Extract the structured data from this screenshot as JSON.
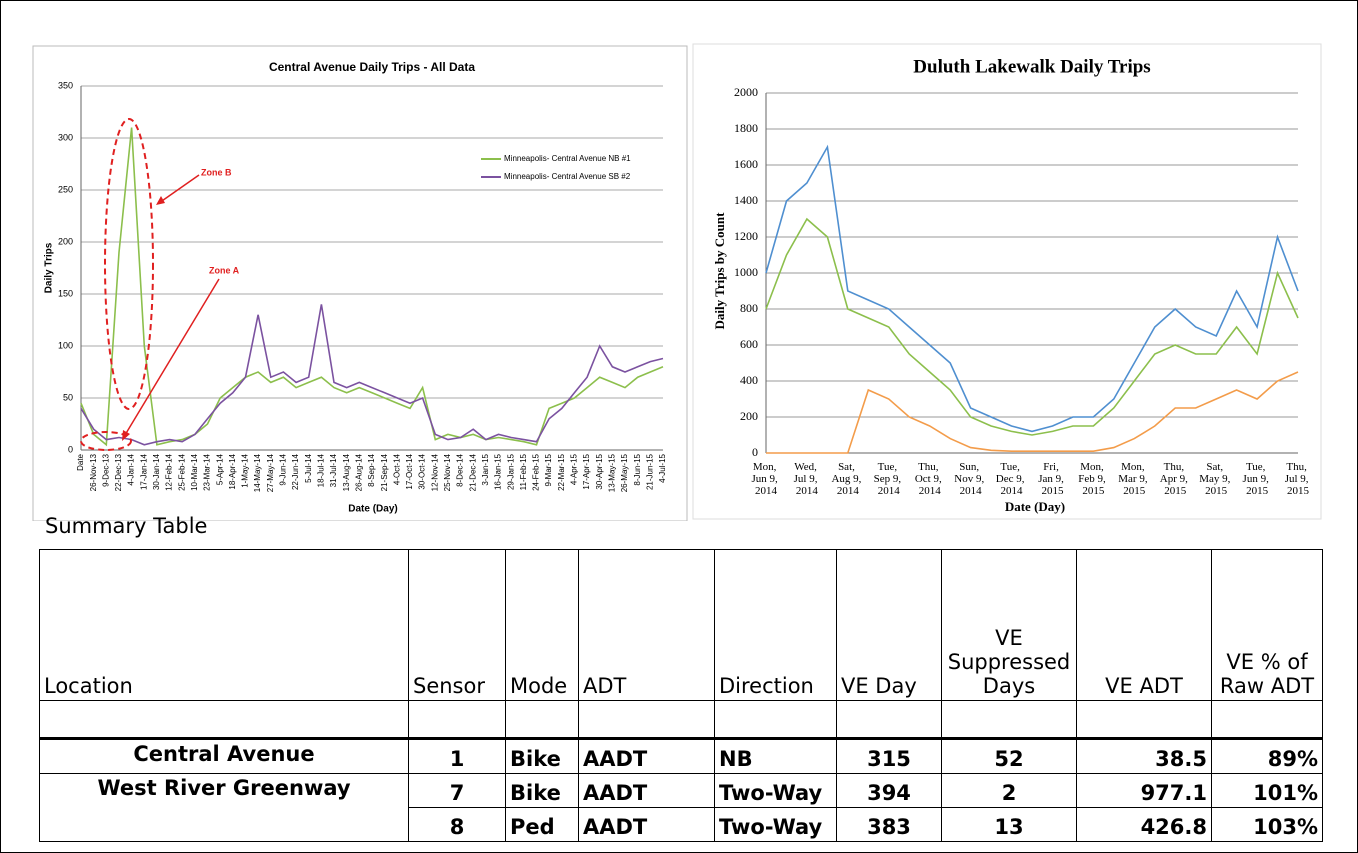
{
  "chart_data": [
    {
      "type": "line",
      "title": "Central Avenue Daily Trips - All Data",
      "x_label": "Date (Day)",
      "y_label": "Daily Trips",
      "categories": [
        "Date",
        "26-Nov-13",
        "9-Dec-13",
        "22-Dec-13",
        "4-Jan-14",
        "17-Jan-14",
        "30-Jan-14",
        "12-Feb-14",
        "25-Feb-14",
        "10-Mar-14",
        "23-Mar-14",
        "5-Apr-14",
        "18-Apr-14",
        "1-May-14",
        "14-May-14",
        "27-May-14",
        "9-Jun-14",
        "22-Jun-14",
        "5-Jul-14",
        "18-Jul-14",
        "31-Jul-14",
        "13-Aug-14",
        "26-Aug-14",
        "8-Sep-14",
        "21-Sep-14",
        "4-Oct-14",
        "17-Oct-14",
        "30-Oct-14",
        "12-Nov-14",
        "25-Nov-14",
        "8-Dec-14",
        "21-Dec-14",
        "3-Jan-15",
        "16-Jan-15",
        "29-Jan-15",
        "11-Feb-15",
        "24-Feb-15",
        "9-Mar-15",
        "22-Mar-15",
        "4-Apr-15",
        "17-Apr-15",
        "30-Apr-15",
        "13-May-15",
        "26-May-15",
        "8-Jun-15",
        "21-Jun-15",
        "4-Jul-15"
      ],
      "series": [
        {
          "name": "Minneapolis- Central Avenue NB #1",
          "color": "#8cbf4c",
          "values": [
            45,
            15,
            5,
            190,
            310,
            100,
            5,
            8,
            10,
            15,
            25,
            50,
            60,
            70,
            75,
            65,
            70,
            60,
            65,
            70,
            60,
            55,
            60,
            55,
            50,
            45,
            40,
            60,
            10,
            15,
            12,
            15,
            10,
            12,
            10,
            8,
            5,
            40,
            45,
            50,
            60,
            70,
            65,
            60,
            70,
            75,
            80
          ]
        },
        {
          "name": "Minneapolis- Central Avenue SB #2",
          "color": "#7b52a0",
          "values": [
            40,
            20,
            10,
            12,
            10,
            5,
            8,
            10,
            8,
            15,
            30,
            45,
            55,
            70,
            130,
            70,
            75,
            65,
            70,
            140,
            65,
            60,
            65,
            60,
            55,
            50,
            45,
            50,
            15,
            10,
            12,
            20,
            10,
            15,
            12,
            10,
            8,
            30,
            40,
            55,
            70,
            100,
            80,
            75,
            80,
            85,
            88
          ]
        }
      ],
      "ylim": [
        0,
        350
      ],
      "yticks": [
        0,
        50,
        100,
        150,
        200,
        250,
        300,
        350
      ],
      "grid": true,
      "legend": "upper right",
      "annotations": [
        "Zone B",
        "Zone A"
      ]
    },
    {
      "type": "line",
      "title": "Duluth Lakewalk Daily Trips",
      "x_label": "Date (Day)",
      "y_label": "Daily Trips by Count",
      "categories": [
        "Mon, Jun 9, 2014",
        null,
        "Wed, Jul 9, 2014",
        null,
        "Sat, Aug 9, 2014",
        null,
        "Tue, Sep 9, 2014",
        null,
        "Thu, Oct 9, 2014",
        null,
        "Sun, Nov 9, 2014",
        null,
        "Tue, Dec 9, 2014",
        null,
        "Fri, Jan 9, 2015",
        null,
        "Mon, Feb 9, 2015",
        null,
        "Mon, Mar 9, 2015",
        null,
        "Thu, Apr 9, 2015",
        null,
        "Sat, May 9, 2015",
        null,
        "Tue, Jun 9, 2015",
        null,
        "Thu, Jul 9, 2015"
      ],
      "series": [
        {
          "color": "#4f8fd0",
          "values": [
            1000,
            1400,
            1500,
            1700,
            900,
            850,
            800,
            700,
            600,
            500,
            250,
            200,
            150,
            120,
            150,
            200,
            200,
            300,
            500,
            700,
            800,
            700,
            650,
            900,
            700,
            1200,
            900
          ]
        },
        {
          "color": "#8cbf4c",
          "values": [
            800,
            1100,
            1300,
            1200,
            800,
            750,
            700,
            550,
            450,
            350,
            200,
            150,
            120,
            100,
            120,
            150,
            150,
            250,
            400,
            550,
            600,
            550,
            550,
            700,
            550,
            1000,
            750
          ]
        },
        {
          "color": "#f39c4a",
          "values": [
            0,
            0,
            0,
            0,
            0,
            350,
            300,
            200,
            150,
            80,
            30,
            15,
            10,
            10,
            10,
            10,
            10,
            30,
            80,
            150,
            250,
            250,
            300,
            350,
            300,
            400,
            450
          ]
        }
      ],
      "ylim": [
        0,
        2000
      ],
      "yticks": [
        0,
        200,
        400,
        600,
        800,
        1000,
        1200,
        1400,
        1600,
        1800,
        2000
      ],
      "grid": true
    }
  ],
  "table": {
    "title": "Summary Table",
    "header": [
      "Location",
      "Sensor",
      "Mode",
      "ADT",
      "Direction",
      "VE Day",
      "VE Suppressed Days",
      "VE ADT",
      "VE % of Raw ADT"
    ],
    "rows": [
      [
        "Central Avenue",
        1,
        "Bike",
        "AADT",
        "NB",
        315,
        52,
        38.5,
        "89%"
      ],
      [
        "West River Greenway",
        7,
        "Bike",
        "AADT",
        "Two-Way",
        394,
        2,
        977.1,
        "101%"
      ],
      [
        null,
        8,
        "Ped",
        "AADT",
        "Two-Way",
        383,
        13,
        426.8,
        "103%"
      ]
    ]
  }
}
